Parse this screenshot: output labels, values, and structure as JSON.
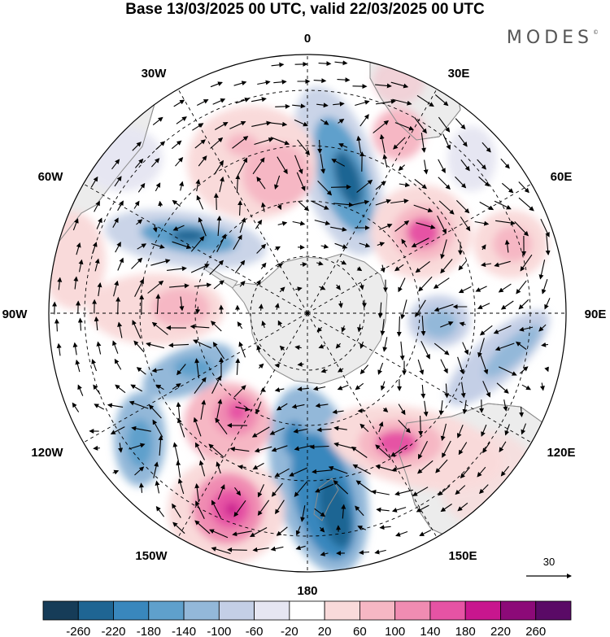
{
  "title": "Base 13/03/2025 00 UTC, valid 22/03/2025 00 UTC",
  "brand": {
    "name": "MODES",
    "mark": "©"
  },
  "map": {
    "projection": "south polar stereographic",
    "longitude_labels": [
      "0",
      "30E",
      "60E",
      "90E",
      "120E",
      "150E",
      "180",
      "150W",
      "120W",
      "90W",
      "60W",
      "30W"
    ],
    "colors": {
      "land": "#ececec",
      "coast": "#8c8c8c",
      "grid": "#000000"
    }
  },
  "vector_legend": {
    "value": "30"
  },
  "colorbar": {
    "ticks": [
      "-260",
      "-220",
      "-180",
      "-140",
      "-100",
      "-60",
      "-20",
      "20",
      "60",
      "100",
      "140",
      "180",
      "220",
      "260"
    ],
    "colors": [
      "#163c58",
      "#1f6593",
      "#3987bd",
      "#5fa0cc",
      "#93b8d9",
      "#c4cfe6",
      "#e6e6f2",
      "#ffffff",
      "#f9dada",
      "#f6b7c4",
      "#f08cb2",
      "#e653a4",
      "#c8168e",
      "#8c0a78",
      "#5a0a66"
    ]
  }
}
